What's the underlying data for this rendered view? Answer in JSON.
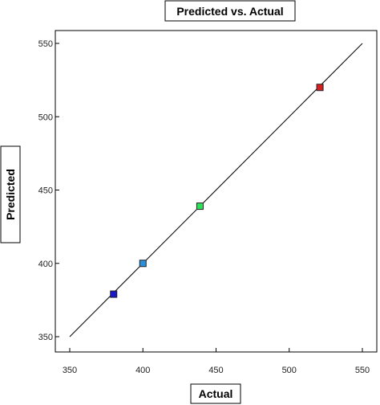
{
  "chart_data": {
    "type": "scatter",
    "title": "Predicted vs. Actual",
    "xlabel": "Actual",
    "ylabel": "Predicted",
    "xlim": [
      350,
      550
    ],
    "ylim": [
      350,
      550
    ],
    "xticks": [
      "350",
      "400",
      "450",
      "500",
      "550"
    ],
    "yticks": [
      "350",
      "400",
      "450",
      "500",
      "550"
    ],
    "grid": false,
    "reference_line": {
      "from": [
        350,
        350
      ],
      "to": [
        550,
        550
      ]
    },
    "points": [
      {
        "x": 380,
        "y": 379,
        "color": "#1a1acc"
      },
      {
        "x": 400,
        "y": 400,
        "color": "#2b8fd9"
      },
      {
        "x": 439,
        "y": 439,
        "color": "#2ee05a"
      },
      {
        "x": 521,
        "y": 520,
        "color": "#d42020"
      }
    ]
  }
}
